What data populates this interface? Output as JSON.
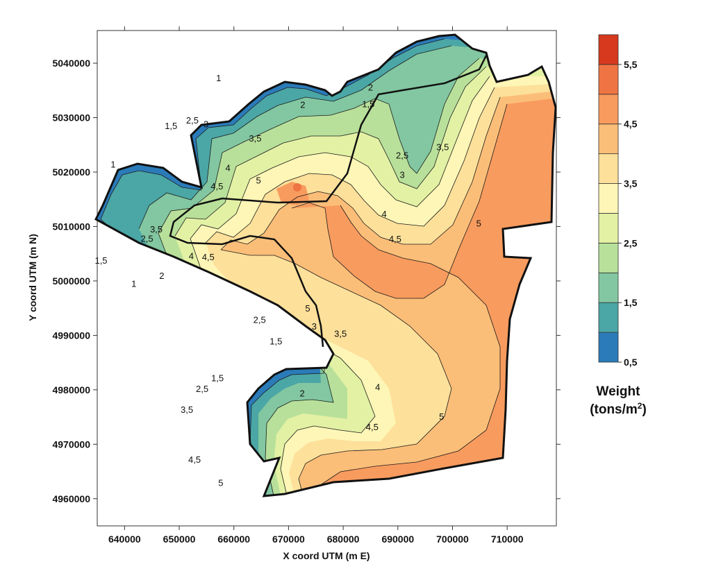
{
  "map": {
    "x_axis_title": "X coord UTM (m E)",
    "y_axis_title": "Y coord UTM (m N)",
    "x_ticks": [
      640000,
      650000,
      660000,
      670000,
      680000,
      690000,
      700000,
      710000
    ],
    "y_ticks": [
      4960000,
      4970000,
      4980000,
      4990000,
      5000000,
      5010000,
      5020000,
      5030000,
      5040000
    ],
    "x_range": [
      635000,
      719000
    ],
    "y_range": [
      4955000,
      5046000
    ]
  },
  "legend": {
    "title_line1": "Weight",
    "title_line2_prefix": "(tons/m",
    "title_line2_sup": "2",
    "title_line2_suffix": ")",
    "labels": [
      "0,5",
      "1,5",
      "2,5",
      "3,5",
      "4,5",
      "5,5"
    ],
    "colors": [
      "#2b7bb9",
      "#4ba6a6",
      "#82c7a1",
      "#b8e09a",
      "#e3f1a4",
      "#fdf6b6",
      "#fde09a",
      "#fbbe78",
      "#f89b5e",
      "#ee7443",
      "#d7391f"
    ]
  },
  "contour_labels": [
    {
      "text": "1",
      "x": 657200,
      "y": 5036700
    },
    {
      "text": "1,5",
      "x": 648500,
      "y": 5027900
    },
    {
      "text": "2,5",
      "x": 652400,
      "y": 5028900
    },
    {
      "text": "3",
      "x": 654900,
      "y": 5028200
    },
    {
      "text": "2",
      "x": 672600,
      "y": 5031800
    },
    {
      "text": "2",
      "x": 685000,
      "y": 5035000
    },
    {
      "text": "1,5",
      "x": 684600,
      "y": 5031900
    },
    {
      "text": "3,5",
      "x": 663900,
      "y": 5025600
    },
    {
      "text": "4",
      "x": 658900,
      "y": 5020200
    },
    {
      "text": "4,5",
      "x": 656900,
      "y": 5016800
    },
    {
      "text": "5",
      "x": 664500,
      "y": 5017900
    },
    {
      "text": "2,5",
      "x": 690800,
      "y": 5022500
    },
    {
      "text": "3",
      "x": 690800,
      "y": 5018900
    },
    {
      "text": "3,5",
      "x": 698200,
      "y": 5024000
    },
    {
      "text": "4",
      "x": 687500,
      "y": 5011700
    },
    {
      "text": "4,5",
      "x": 689500,
      "y": 5007100
    },
    {
      "text": "5",
      "x": 704800,
      "y": 5010000
    },
    {
      "text": "1",
      "x": 637900,
      "y": 5020800
    },
    {
      "text": "3,5",
      "x": 645800,
      "y": 5008900
    },
    {
      "text": "2,5",
      "x": 644100,
      "y": 5007200
    },
    {
      "text": "1,5",
      "x": 635700,
      "y": 5003200
    },
    {
      "text": "4,5",
      "x": 655300,
      "y": 5003800
    },
    {
      "text": "4",
      "x": 652200,
      "y": 5004000
    },
    {
      "text": "2",
      "x": 646800,
      "y": 5000400
    },
    {
      "text": "1",
      "x": 641700,
      "y": 4998900
    },
    {
      "text": "5",
      "x": 673500,
      "y": 4994400
    },
    {
      "text": "2,5",
      "x": 664700,
      "y": 4992300
    },
    {
      "text": "3",
      "x": 674700,
      "y": 4991100
    },
    {
      "text": "3,5",
      "x": 679500,
      "y": 4989700
    },
    {
      "text": "1,5",
      "x": 667700,
      "y": 4988300
    },
    {
      "text": "1,5",
      "x": 657000,
      "y": 4981600
    },
    {
      "text": "2",
      "x": 672500,
      "y": 4978800
    },
    {
      "text": "4",
      "x": 686300,
      "y": 4979900
    },
    {
      "text": "4,5",
      "x": 685300,
      "y": 4972600
    },
    {
      "text": "5",
      "x": 698000,
      "y": 4974500
    },
    {
      "text": "2,5",
      "x": 654200,
      "y": 4979600
    },
    {
      "text": "3,5",
      "x": 651400,
      "y": 4975800
    },
    {
      "text": "4,5",
      "x": 652800,
      "y": 4966600
    },
    {
      "text": "5",
      "x": 657600,
      "y": 4962300
    }
  ]
}
